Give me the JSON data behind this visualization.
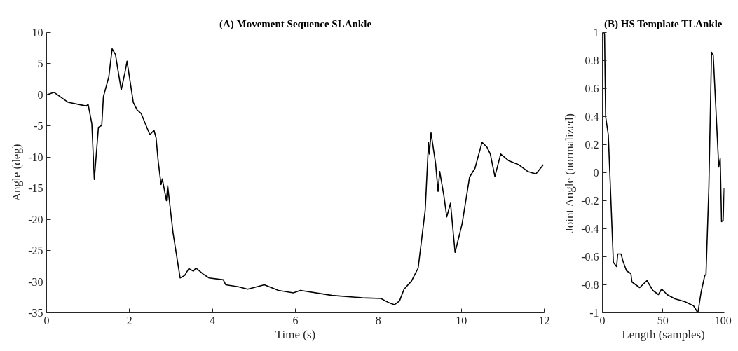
{
  "chart_data": [
    {
      "type": "line",
      "title": "(A) Movement Sequence SLAnkle",
      "xlabel": "Time (s)",
      "ylabel": "Angle (deg)",
      "xlim": [
        0,
        12
      ],
      "ylim": [
        -35,
        10
      ],
      "xticks": [
        0,
        2,
        4,
        6,
        8,
        10,
        12
      ],
      "yticks": [
        -35,
        -30,
        -25,
        -20,
        -15,
        -10,
        -5,
        0,
        5,
        10
      ],
      "series": [
        {
          "color": "#000000",
          "x": [
            0.0,
            0.18,
            0.52,
            0.96,
            1.0,
            1.09,
            1.15,
            1.25,
            1.33,
            1.37,
            1.5,
            1.58,
            1.66,
            1.72,
            1.8,
            1.89,
            1.94,
            2.09,
            2.18,
            2.28,
            2.49,
            2.59,
            2.64,
            2.69,
            2.76,
            2.79,
            2.89,
            2.92,
            3.05,
            3.22,
            3.33,
            3.43,
            3.54,
            3.6,
            3.78,
            3.92,
            4.26,
            4.32,
            4.62,
            4.85,
            5.25,
            5.59,
            5.95,
            6.12,
            6.88,
            7.62,
            8.06,
            8.23,
            8.39,
            8.51,
            8.62,
            8.8,
            8.96,
            9.13,
            9.21,
            9.23,
            9.27,
            9.38,
            9.44,
            9.48,
            9.58,
            9.65,
            9.74,
            9.85,
            10.02,
            10.2,
            10.33,
            10.5,
            10.62,
            10.7,
            10.81,
            10.95,
            11.15,
            11.38,
            11.6,
            11.8,
            11.98
          ],
          "values": [
            0.0,
            0.4,
            -1.2,
            -1.8,
            -1.5,
            -4.6,
            -13.6,
            -5.2,
            -4.9,
            -0.3,
            2.9,
            7.4,
            6.5,
            4.0,
            0.8,
            3.6,
            5.4,
            -1.2,
            -2.4,
            -3.0,
            -6.4,
            -5.7,
            -6.9,
            -10.6,
            -14.4,
            -13.5,
            -17.0,
            -14.6,
            -22.2,
            -29.4,
            -29.0,
            -27.9,
            -28.3,
            -27.8,
            -28.8,
            -29.4,
            -29.7,
            -30.5,
            -30.8,
            -31.2,
            -30.5,
            -31.4,
            -31.8,
            -31.4,
            -32.2,
            -32.6,
            -32.7,
            -33.3,
            -33.7,
            -33.1,
            -31.2,
            -29.9,
            -27.8,
            -18.5,
            -7.6,
            -9.5,
            -6.1,
            -11.0,
            -15.5,
            -12.3,
            -16.2,
            -19.6,
            -17.4,
            -25.3,
            -20.7,
            -13.2,
            -11.8,
            -7.6,
            -8.4,
            -9.5,
            -13.1,
            -9.5,
            -10.6,
            -11.2,
            -12.3,
            -12.7,
            -11.2
          ]
        }
      ]
    },
    {
      "type": "line",
      "title": "(B) HS Template TLAnkle",
      "xlabel": "Length (samples)",
      "ylabel": "Joint Angle (normalized)",
      "xlim": [
        0,
        101
      ],
      "ylim": [
        -1,
        1
      ],
      "xticks": [
        0,
        50,
        100
      ],
      "yticks": [
        -1,
        -0.8,
        -0.6,
        -0.4,
        -0.2,
        0,
        0.2,
        0.4,
        0.6,
        0.8,
        1
      ],
      "series": [
        {
          "color": "#000000",
          "x": [
            1.3,
            1.8,
            2.7,
            4.9,
            9.1,
            11.8,
            12.7,
            15.5,
            17,
            20,
            23.6,
            24.5,
            30.9,
            36.9,
            41.8,
            46.4,
            49.1,
            53.6,
            60,
            68.2,
            75.5,
            79.1,
            81.8,
            84.9,
            85.8,
            88.2,
            90.4,
            91.8,
            96.4,
            97.6,
            98.7,
            100,
            100.9
          ],
          "values": [
            1.0,
            0.99,
            0.4,
            0.27,
            -0.64,
            -0.67,
            -0.58,
            -0.58,
            -0.63,
            -0.7,
            -0.72,
            -0.78,
            -0.82,
            -0.77,
            -0.84,
            -0.87,
            -0.83,
            -0.87,
            -0.9,
            -0.92,
            -0.95,
            -1.0,
            -0.85,
            -0.73,
            -0.73,
            -0.1,
            0.86,
            0.84,
            0.04,
            0.1,
            -0.35,
            -0.34,
            -0.11
          ]
        }
      ]
    }
  ]
}
